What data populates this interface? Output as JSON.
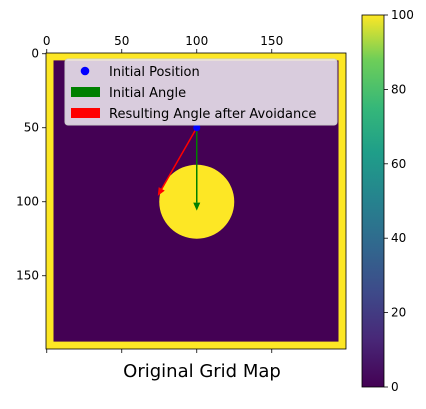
{
  "chart_data": {
    "type": "heatmap",
    "title": "Original Grid Map",
    "grid_size": 200,
    "value_range": [
      0,
      100
    ],
    "colormap": "viridis",
    "colormap_colors": {
      "low": "#440154",
      "high": "#fde725"
    },
    "border": {
      "thickness_cells": 5,
      "value": 100
    },
    "obstacle": {
      "shape": "circle",
      "center": [
        100,
        100
      ],
      "radius": 25,
      "value": 100
    },
    "x_ticks": [
      0,
      50,
      100,
      150
    ],
    "x_ticks_position": "top",
    "y_ticks": [
      0,
      50,
      100,
      150
    ],
    "colorbar": {
      "ticks": [
        0,
        20,
        40,
        60,
        80,
        100
      ]
    },
    "initial_position": {
      "x": 100,
      "y": 50,
      "color": "#0000ff"
    },
    "initial_angle_arrow": {
      "from": [
        100,
        50
      ],
      "to": [
        100,
        106
      ],
      "color": "#008000"
    },
    "avoidance_arrow": {
      "from": [
        100,
        50
      ],
      "to": [
        74,
        96
      ],
      "color": "#ff0000"
    },
    "legend": {
      "placement": "top",
      "entries": [
        {
          "label": "Initial Position",
          "marker": "circle",
          "color": "#0000ff"
        },
        {
          "label": "Initial Angle",
          "marker": "patch",
          "color": "#008000"
        },
        {
          "label": "Resulting Angle after Avoidance",
          "marker": "patch",
          "color": "#ff0000"
        }
      ]
    }
  }
}
